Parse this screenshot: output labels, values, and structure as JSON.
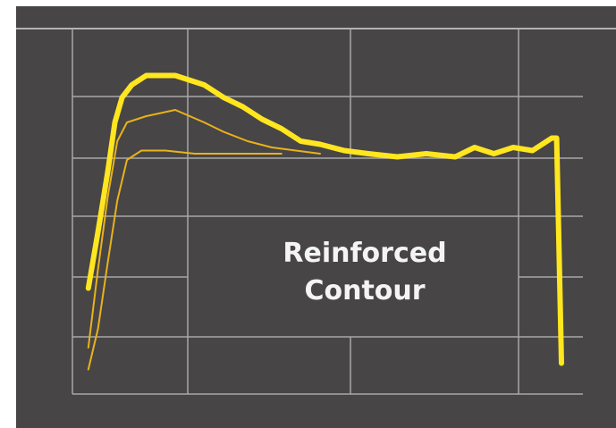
{
  "chart_data": {
    "type": "line",
    "title": "",
    "xlabel": "",
    "ylabel": "",
    "grid": true,
    "annotation": [
      "Reinforced",
      "Contour"
    ],
    "colors": {
      "background": "#474546",
      "grid": "#a9a8a9",
      "text": "#f4f4f4",
      "primary_line": "#ffe61f",
      "secondary_lines": "#e9b21a"
    },
    "series": [
      {
        "values": [
          [
            0.02,
            0.27
          ],
          [
            0.04,
            0.45
          ],
          [
            0.06,
            0.64
          ],
          [
            0.075,
            0.8
          ],
          [
            0.09,
            0.88
          ],
          [
            0.11,
            0.92
          ],
          [
            0.14,
            0.95
          ],
          [
            0.2,
            0.95
          ],
          [
            0.26,
            0.92
          ],
          [
            0.3,
            0.88
          ],
          [
            0.34,
            0.85
          ],
          [
            0.38,
            0.81
          ],
          [
            0.42,
            0.78
          ],
          [
            0.46,
            0.74
          ],
          [
            0.5,
            0.73
          ],
          [
            0.55,
            0.71
          ],
          [
            0.6,
            0.7
          ],
          [
            0.66,
            0.69
          ],
          [
            0.72,
            0.7
          ],
          [
            0.78,
            0.69
          ],
          [
            0.82,
            0.72
          ],
          [
            0.86,
            0.7
          ],
          [
            0.9,
            0.72
          ],
          [
            0.94,
            0.71
          ],
          [
            0.98,
            0.75
          ],
          [
            0.99,
            0.75
          ],
          [
            1.0,
            0.03
          ]
        ]
      },
      {
        "values": [
          [
            0.02,
            0.08
          ],
          [
            0.04,
            0.33
          ],
          [
            0.06,
            0.56
          ],
          [
            0.08,
            0.74
          ],
          [
            0.1,
            0.8
          ],
          [
            0.14,
            0.82
          ],
          [
            0.2,
            0.84
          ],
          [
            0.26,
            0.8
          ],
          [
            0.3,
            0.77
          ],
          [
            0.35,
            0.74
          ],
          [
            0.4,
            0.72
          ],
          [
            0.45,
            0.71
          ],
          [
            0.5,
            0.7
          ]
        ]
      },
      {
        "values": [
          [
            0.02,
            0.01
          ],
          [
            0.04,
            0.14
          ],
          [
            0.06,
            0.35
          ],
          [
            0.08,
            0.55
          ],
          [
            0.1,
            0.68
          ],
          [
            0.13,
            0.71
          ],
          [
            0.18,
            0.71
          ],
          [
            0.24,
            0.7
          ],
          [
            0.3,
            0.7
          ],
          [
            0.36,
            0.7
          ],
          [
            0.42,
            0.7
          ]
        ]
      }
    ]
  }
}
